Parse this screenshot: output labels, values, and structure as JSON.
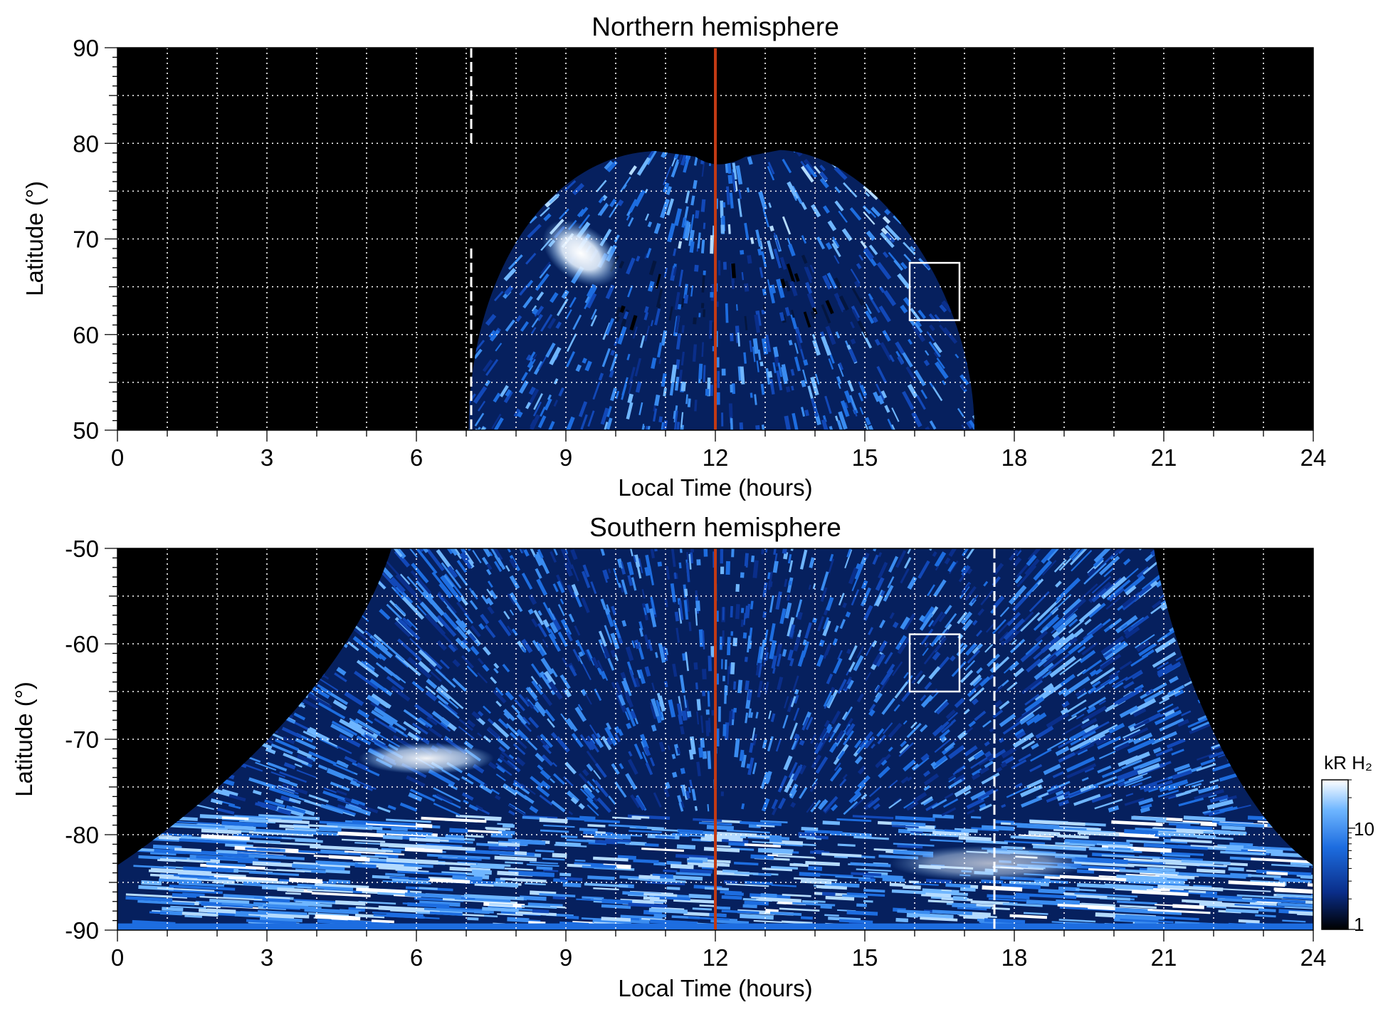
{
  "chart_data": [
    {
      "type": "heatmap",
      "title": "Northern hemisphere",
      "xlabel": "Local Time (hours)",
      "ylabel": "Latitude (°)",
      "xlim": [
        0,
        24
      ],
      "ylim": [
        50,
        90
      ],
      "x_ticks": [
        0,
        3,
        6,
        9,
        12,
        15,
        18,
        21,
        24
      ],
      "y_ticks": [
        50,
        60,
        70,
        80,
        90
      ],
      "grid": true,
      "grid_x_step": 1,
      "grid_y_step": 5,
      "noon_line": {
        "x": 12,
        "color": "#c23a14"
      },
      "dashed_line": {
        "x": 7.1,
        "y_range": [
          50,
          90
        ],
        "gap": [
          69,
          80
        ]
      },
      "box": {
        "x": [
          15.9,
          16.9
        ],
        "y": [
          61.5,
          67.5
        ]
      },
      "bright_spot": {
        "x": 9.3,
        "y": 68.5
      }
    },
    {
      "type": "heatmap",
      "title": "Southern hemisphere",
      "xlabel": "Local Time (hours)",
      "ylabel": "Latitude (°)",
      "xlim": [
        0,
        24
      ],
      "ylim": [
        -90,
        -50
      ],
      "x_ticks": [
        0,
        3,
        6,
        9,
        12,
        15,
        18,
        21,
        24
      ],
      "y_ticks": [
        -90,
        -80,
        -70,
        -60,
        -50
      ],
      "grid": true,
      "grid_x_step": 1,
      "grid_y_step": 5,
      "noon_line": {
        "x": 12,
        "color": "#c23a14"
      },
      "dashed_line": {
        "x": 17.6,
        "y_range": [
          -90,
          -50
        ]
      },
      "box": {
        "x": [
          15.9,
          16.9
        ],
        "y": [
          -65,
          -59
        ]
      },
      "bright_spot": {
        "x": 6.2,
        "y": -72
      }
    }
  ],
  "colorbar": {
    "label": "kR H₂",
    "scale": "log",
    "range": [
      1,
      30
    ],
    "tick_labels": [
      "1",
      "10"
    ],
    "tick_values": [
      1,
      10
    ],
    "colors": [
      "#000000",
      "#0a2e8a",
      "#1d6de0",
      "#6fb6ff",
      "#ffffff"
    ]
  }
}
